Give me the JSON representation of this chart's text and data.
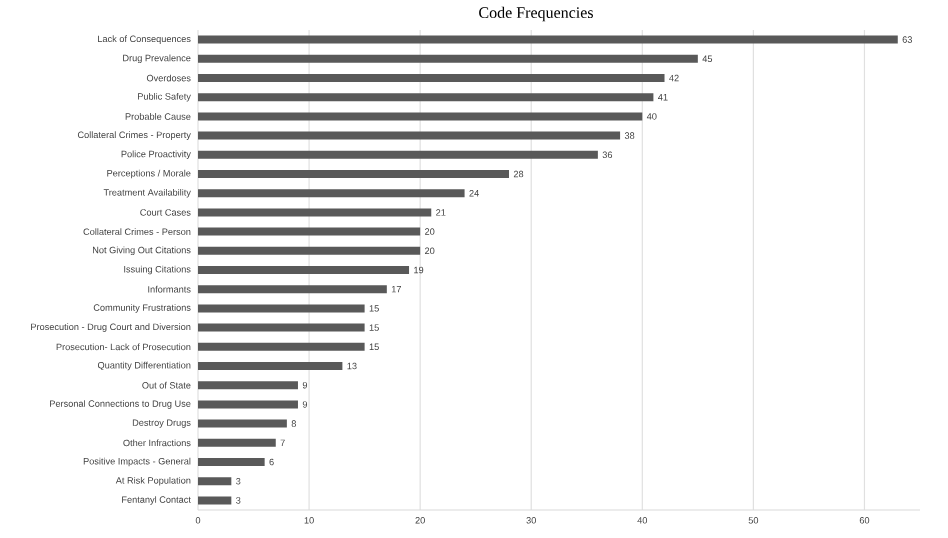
{
  "chart_data": {
    "type": "bar",
    "orientation": "horizontal",
    "title": "Code Frequencies",
    "categories": [
      "Lack of Consequences",
      "Drug Prevalence",
      "Overdoses",
      "Public Safety",
      "Probable Cause",
      "Collateral Crimes - Property",
      "Police Proactivity",
      "Perceptions / Morale",
      "Treatment Availability",
      "Court Cases",
      "Collateral Crimes - Person",
      "Not Giving Out Citations",
      "Issuing Citations",
      "Informants",
      "Community Frustrations",
      "Prosecution - Drug Court and Diversion",
      "Prosecution- Lack of Prosecution",
      "Quantity Differentiation",
      "Out of State",
      "Personal Connections to Drug Use",
      "Destroy Drugs",
      "Other Infractions",
      "Positive Impacts - General",
      "At Risk Population",
      "Fentanyl Contact"
    ],
    "values": [
      63,
      45,
      42,
      41,
      40,
      38,
      36,
      28,
      24,
      21,
      20,
      20,
      19,
      17,
      15,
      15,
      15,
      13,
      9,
      9,
      8,
      7,
      6,
      3,
      3
    ],
    "color": "#595959",
    "xlim": [
      0,
      65
    ],
    "xticks": [
      0,
      10,
      20,
      30,
      40,
      50,
      60
    ],
    "grid": "x",
    "data_labels": true
  }
}
